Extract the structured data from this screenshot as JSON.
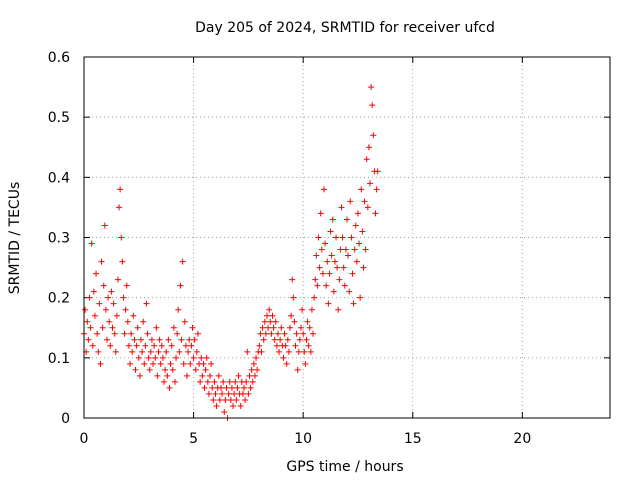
{
  "chart_data": {
    "type": "scatter",
    "title": "Day 205 of 2024, SRMTID for receiver ufcd",
    "xlabel": "GPS time / hours",
    "ylabel": "SRMTID / TECUs",
    "xlim": [
      0,
      24
    ],
    "ylim": [
      0,
      0.6
    ],
    "x_ticks": [
      0,
      5,
      10,
      15,
      20
    ],
    "x_tick_labels": [
      "0",
      "5",
      "10",
      "15",
      "20"
    ],
    "y_ticks": [
      0,
      0.1,
      0.2,
      0.3,
      0.4,
      0.5,
      0.6
    ],
    "y_tick_labels": [
      "0",
      "0.1",
      "0.2",
      "0.3",
      "0.4",
      "0.5",
      "0.6"
    ],
    "grid": true,
    "marker": "+",
    "series": [
      {
        "name": "SRMTID",
        "color": "#ff0000",
        "points": [
          [
            0.0,
            0.14
          ],
          [
            0.05,
            0.18
          ],
          [
            0.1,
            0.11
          ],
          [
            0.15,
            0.16
          ],
          [
            0.2,
            0.13
          ],
          [
            0.25,
            0.2
          ],
          [
            0.3,
            0.15
          ],
          [
            0.35,
            0.29
          ],
          [
            0.4,
            0.12
          ],
          [
            0.45,
            0.21
          ],
          [
            0.5,
            0.17
          ],
          [
            0.55,
            0.24
          ],
          [
            0.6,
            0.14
          ],
          [
            0.65,
            0.11
          ],
          [
            0.7,
            0.19
          ],
          [
            0.75,
            0.09
          ],
          [
            0.8,
            0.26
          ],
          [
            0.85,
            0.15
          ],
          [
            0.9,
            0.22
          ],
          [
            0.95,
            0.32
          ],
          [
            1.0,
            0.18
          ],
          [
            1.05,
            0.13
          ],
          [
            1.1,
            0.2
          ],
          [
            1.15,
            0.16
          ],
          [
            1.2,
            0.12
          ],
          [
            1.25,
            0.21
          ],
          [
            1.3,
            0.15
          ],
          [
            1.35,
            0.19
          ],
          [
            1.4,
            0.14
          ],
          [
            1.45,
            0.11
          ],
          [
            1.5,
            0.17
          ],
          [
            1.55,
            0.23
          ],
          [
            1.6,
            0.35
          ],
          [
            1.65,
            0.38
          ],
          [
            1.7,
            0.3
          ],
          [
            1.75,
            0.26
          ],
          [
            1.8,
            0.2
          ],
          [
            1.85,
            0.14
          ],
          [
            1.9,
            0.18
          ],
          [
            1.95,
            0.22
          ],
          [
            2.0,
            0.16
          ],
          [
            2.05,
            0.12
          ],
          [
            2.1,
            0.09
          ],
          [
            2.15,
            0.14
          ],
          [
            2.2,
            0.11
          ],
          [
            2.25,
            0.17
          ],
          [
            2.3,
            0.13
          ],
          [
            2.35,
            0.08
          ],
          [
            2.4,
            0.12
          ],
          [
            2.45,
            0.15
          ],
          [
            2.5,
            0.1
          ],
          [
            2.55,
            0.07
          ],
          [
            2.6,
            0.13
          ],
          [
            2.65,
            0.11
          ],
          [
            2.7,
            0.16
          ],
          [
            2.75,
            0.09
          ],
          [
            2.8,
            0.12
          ],
          [
            2.85,
            0.19
          ],
          [
            2.9,
            0.14
          ],
          [
            2.95,
            0.1
          ],
          [
            3.0,
            0.08
          ],
          [
            3.05,
            0.11
          ],
          [
            3.1,
            0.13
          ],
          [
            3.15,
            0.09
          ],
          [
            3.2,
            0.12
          ],
          [
            3.25,
            0.1
          ],
          [
            3.3,
            0.15
          ],
          [
            3.35,
            0.07
          ],
          [
            3.4,
            0.11
          ],
          [
            3.45,
            0.13
          ],
          [
            3.5,
            0.09
          ],
          [
            3.55,
            0.12
          ],
          [
            3.6,
            0.1
          ],
          [
            3.65,
            0.06
          ],
          [
            3.7,
            0.08
          ],
          [
            3.75,
            0.11
          ],
          [
            3.8,
            0.07
          ],
          [
            3.85,
            0.13
          ],
          [
            3.9,
            0.05
          ],
          [
            3.95,
            0.09
          ],
          [
            4.0,
            0.12
          ],
          [
            4.05,
            0.08
          ],
          [
            4.1,
            0.15
          ],
          [
            4.15,
            0.06
          ],
          [
            4.2,
            0.1
          ],
          [
            4.25,
            0.14
          ],
          [
            4.3,
            0.18
          ],
          [
            4.35,
            0.11
          ],
          [
            4.4,
            0.22
          ],
          [
            4.45,
            0.13
          ],
          [
            4.5,
            0.26
          ],
          [
            4.55,
            0.09
          ],
          [
            4.6,
            0.16
          ],
          [
            4.65,
            0.12
          ],
          [
            4.7,
            0.07
          ],
          [
            4.75,
            0.11
          ],
          [
            4.8,
            0.13
          ],
          [
            4.85,
            0.09
          ],
          [
            4.9,
            0.12
          ],
          [
            4.95,
            0.15
          ],
          [
            5.0,
            0.1
          ],
          [
            5.05,
            0.13
          ],
          [
            5.1,
            0.08
          ],
          [
            5.15,
            0.11
          ],
          [
            5.2,
            0.14
          ],
          [
            5.25,
            0.09
          ],
          [
            5.3,
            0.06
          ],
          [
            5.35,
            0.1
          ],
          [
            5.4,
            0.07
          ],
          [
            5.45,
            0.09
          ],
          [
            5.5,
            0.05
          ],
          [
            5.55,
            0.08
          ],
          [
            5.6,
            0.1
          ],
          [
            5.65,
            0.06
          ],
          [
            5.7,
            0.04
          ],
          [
            5.75,
            0.07
          ],
          [
            5.8,
            0.09
          ],
          [
            5.85,
            0.05
          ],
          [
            5.9,
            0.03
          ],
          [
            5.95,
            0.06
          ],
          [
            6.0,
            0.04
          ],
          [
            6.05,
            0.02
          ],
          [
            6.1,
            0.05
          ],
          [
            6.15,
            0.07
          ],
          [
            6.2,
            0.03
          ],
          [
            6.25,
            0.05
          ],
          [
            6.3,
            0.04
          ],
          [
            6.35,
            0.06
          ],
          [
            6.4,
            0.01
          ],
          [
            6.45,
            0.03
          ],
          [
            6.5,
            0.05
          ],
          [
            6.55,
            0.0
          ],
          [
            6.6,
            0.04
          ],
          [
            6.65,
            0.06
          ],
          [
            6.7,
            0.03
          ],
          [
            6.75,
            0.05
          ],
          [
            6.8,
            0.02
          ],
          [
            6.85,
            0.04
          ],
          [
            6.9,
            0.06
          ],
          [
            6.95,
            0.03
          ],
          [
            7.0,
            0.05
          ],
          [
            7.05,
            0.07
          ],
          [
            7.1,
            0.04
          ],
          [
            7.15,
            0.02
          ],
          [
            7.2,
            0.06
          ],
          [
            7.25,
            0.04
          ],
          [
            7.3,
            0.05
          ],
          [
            7.35,
            0.03
          ],
          [
            7.4,
            0.06
          ],
          [
            7.45,
            0.11
          ],
          [
            7.5,
            0.04
          ],
          [
            7.55,
            0.07
          ],
          [
            7.6,
            0.05
          ],
          [
            7.65,
            0.08
          ],
          [
            7.7,
            0.06
          ],
          [
            7.75,
            0.09
          ],
          [
            7.8,
            0.07
          ],
          [
            7.85,
            0.1
          ],
          [
            7.9,
            0.08
          ],
          [
            7.95,
            0.11
          ],
          [
            8.0,
            0.12
          ],
          [
            8.05,
            0.14
          ],
          [
            8.1,
            0.11
          ],
          [
            8.15,
            0.15
          ],
          [
            8.2,
            0.13
          ],
          [
            8.25,
            0.16
          ],
          [
            8.3,
            0.14
          ],
          [
            8.35,
            0.17
          ],
          [
            8.4,
            0.15
          ],
          [
            8.45,
            0.18
          ],
          [
            8.5,
            0.16
          ],
          [
            8.55,
            0.14
          ],
          [
            8.6,
            0.17
          ],
          [
            8.65,
            0.15
          ],
          [
            8.7,
            0.13
          ],
          [
            8.75,
            0.16
          ],
          [
            8.8,
            0.12
          ],
          [
            8.85,
            0.14
          ],
          [
            8.9,
            0.11
          ],
          [
            8.95,
            0.13
          ],
          [
            9.0,
            0.15
          ],
          [
            9.05,
            0.12
          ],
          [
            9.1,
            0.1
          ],
          [
            9.15,
            0.14
          ],
          [
            9.2,
            0.12
          ],
          [
            9.25,
            0.09
          ],
          [
            9.3,
            0.13
          ],
          [
            9.35,
            0.11
          ],
          [
            9.4,
            0.15
          ],
          [
            9.45,
            0.17
          ],
          [
            9.5,
            0.23
          ],
          [
            9.55,
            0.2
          ],
          [
            9.6,
            0.16
          ],
          [
            9.65,
            0.12
          ],
          [
            9.7,
            0.14
          ],
          [
            9.75,
            0.08
          ],
          [
            9.8,
            0.11
          ],
          [
            9.85,
            0.13
          ],
          [
            9.9,
            0.15
          ],
          [
            9.95,
            0.18
          ],
          [
            10.0,
            0.14
          ],
          [
            10.05,
            0.11
          ],
          [
            10.1,
            0.09
          ],
          [
            10.15,
            0.13
          ],
          [
            10.2,
            0.16
          ],
          [
            10.25,
            0.12
          ],
          [
            10.3,
            0.15
          ],
          [
            10.35,
            0.11
          ],
          [
            10.4,
            0.18
          ],
          [
            10.45,
            0.14
          ],
          [
            10.5,
            0.2
          ],
          [
            10.55,
            0.23
          ],
          [
            10.6,
            0.27
          ],
          [
            10.65,
            0.22
          ],
          [
            10.7,
            0.3
          ],
          [
            10.75,
            0.25
          ],
          [
            10.8,
            0.34
          ],
          [
            10.85,
            0.28
          ],
          [
            10.9,
            0.24
          ],
          [
            10.95,
            0.38
          ],
          [
            11.0,
            0.29
          ],
          [
            11.05,
            0.22
          ],
          [
            11.1,
            0.26
          ],
          [
            11.15,
            0.19
          ],
          [
            11.2,
            0.24
          ],
          [
            11.25,
            0.31
          ],
          [
            11.3,
            0.27
          ],
          [
            11.35,
            0.33
          ],
          [
            11.4,
            0.21
          ],
          [
            11.45,
            0.26
          ],
          [
            11.5,
            0.3
          ],
          [
            11.55,
            0.25
          ],
          [
            11.6,
            0.18
          ],
          [
            11.65,
            0.23
          ],
          [
            11.7,
            0.28
          ],
          [
            11.75,
            0.35
          ],
          [
            11.8,
            0.3
          ],
          [
            11.85,
            0.25
          ],
          [
            11.9,
            0.22
          ],
          [
            11.95,
            0.28
          ],
          [
            12.0,
            0.33
          ],
          [
            12.05,
            0.27
          ],
          [
            12.1,
            0.21
          ],
          [
            12.15,
            0.36
          ],
          [
            12.2,
            0.3
          ],
          [
            12.25,
            0.24
          ],
          [
            12.3,
            0.19
          ],
          [
            12.35,
            0.28
          ],
          [
            12.4,
            0.32
          ],
          [
            12.45,
            0.26
          ],
          [
            12.5,
            0.34
          ],
          [
            12.55,
            0.29
          ],
          [
            12.6,
            0.2
          ],
          [
            12.65,
            0.38
          ],
          [
            12.7,
            0.31
          ],
          [
            12.75,
            0.25
          ],
          [
            12.8,
            0.36
          ],
          [
            12.85,
            0.28
          ],
          [
            12.9,
            0.43
          ],
          [
            12.95,
            0.35
          ],
          [
            13.0,
            0.45
          ],
          [
            13.05,
            0.39
          ],
          [
            13.1,
            0.55
          ],
          [
            13.15,
            0.52
          ],
          [
            13.2,
            0.47
          ],
          [
            13.25,
            0.41
          ],
          [
            13.3,
            0.34
          ],
          [
            13.35,
            0.38
          ],
          [
            13.4,
            0.41
          ]
        ]
      }
    ]
  }
}
